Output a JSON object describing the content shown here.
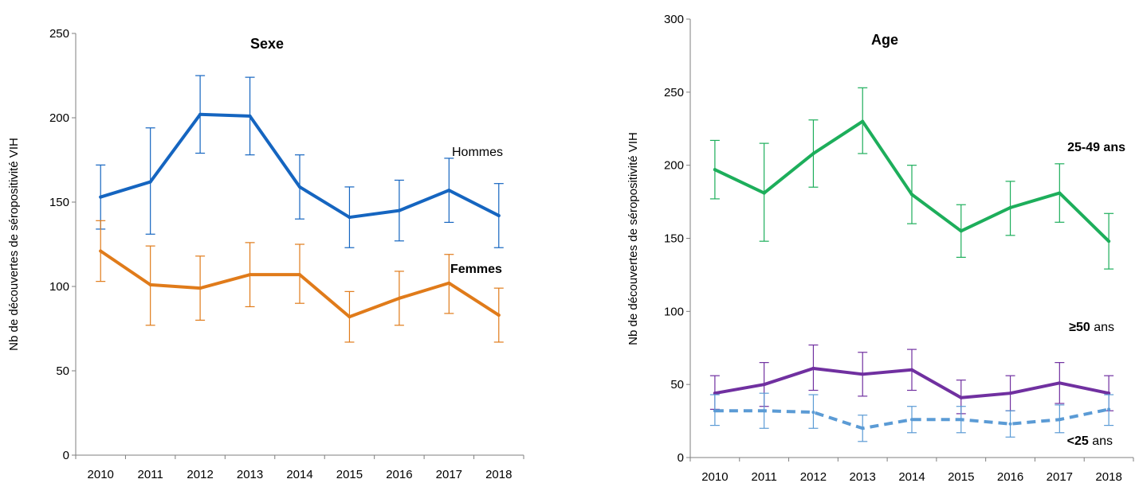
{
  "chart_data": [
    {
      "type": "line",
      "title": "Sexe",
      "ylabel": "Nb de découvertes de séropositivité VIH",
      "xlabel": "",
      "categories": [
        "2010",
        "2011",
        "2012",
        "2013",
        "2014",
        "2015",
        "2016",
        "2017",
        "2018"
      ],
      "ylim": [
        0,
        250
      ],
      "yticks": [
        0,
        50,
        100,
        150,
        200,
        250
      ],
      "grid": false,
      "series": [
        {
          "key": "hommes",
          "color": "#1565C0",
          "dashed": false,
          "values": [
            153,
            162,
            202,
            201,
            159,
            141,
            145,
            157,
            142
          ],
          "err_low": [
            134,
            131,
            179,
            178,
            140,
            123,
            127,
            138,
            123
          ],
          "err_high": [
            172,
            194,
            225,
            224,
            178,
            159,
            163,
            176,
            161
          ]
        },
        {
          "key": "femmes",
          "color": "#E07B1A",
          "dashed": false,
          "values": [
            121,
            101,
            99,
            107,
            107,
            82,
            93,
            102,
            83
          ],
          "err_low": [
            103,
            77,
            80,
            88,
            90,
            67,
            77,
            84,
            67
          ],
          "err_high": [
            139,
            124,
            118,
            126,
            125,
            97,
            109,
            119,
            99
          ]
        }
      ],
      "annotations": [
        {
          "key": "hommes",
          "bold": "",
          "rest": "Hommes"
        },
        {
          "key": "femmes",
          "bold": "Femmes",
          "rest": ""
        }
      ]
    },
    {
      "type": "line",
      "title": "Age",
      "ylabel": "Nb de découvertes de séropositivité VIH",
      "xlabel": "",
      "categories": [
        "2010",
        "2011",
        "2012",
        "2013",
        "2014",
        "2015",
        "2016",
        "2017",
        "2018"
      ],
      "ylim": [
        0,
        300
      ],
      "yticks": [
        0,
        50,
        100,
        150,
        200,
        250,
        300
      ],
      "grid": false,
      "series": [
        {
          "key": "25-49",
          "color": "#1DAE5B",
          "dashed": false,
          "values": [
            197,
            181,
            208,
            230,
            180,
            155,
            171,
            181,
            148
          ],
          "err_low": [
            177,
            148,
            185,
            208,
            160,
            137,
            152,
            161,
            129
          ],
          "err_high": [
            217,
            215,
            231,
            253,
            200,
            173,
            189,
            201,
            167
          ]
        },
        {
          "key": "50plus",
          "color": "#7030A0",
          "dashed": false,
          "values": [
            44,
            50,
            61,
            57,
            60,
            41,
            44,
            51,
            44
          ],
          "err_low": [
            33,
            35,
            46,
            42,
            46,
            30,
            32,
            37,
            32
          ],
          "err_high": [
            56,
            65,
            77,
            72,
            74,
            53,
            56,
            65,
            56
          ]
        },
        {
          "key": "lt25",
          "color": "#5B9BD5",
          "dashed": true,
          "values": [
            32,
            32,
            31,
            20,
            26,
            26,
            23,
            26,
            33
          ],
          "err_low": [
            22,
            20,
            20,
            11,
            17,
            17,
            14,
            17,
            22
          ],
          "err_high": [
            43,
            44,
            43,
            29,
            35,
            35,
            32,
            36,
            43
          ]
        }
      ],
      "annotations": [
        {
          "key": "25-49",
          "bold": "25-49 ans",
          "rest": ""
        },
        {
          "key": "50plus",
          "bold": "≥50",
          "rest": " ans"
        },
        {
          "key": "lt25",
          "bold": "<25",
          "rest": " ans"
        }
      ]
    }
  ]
}
